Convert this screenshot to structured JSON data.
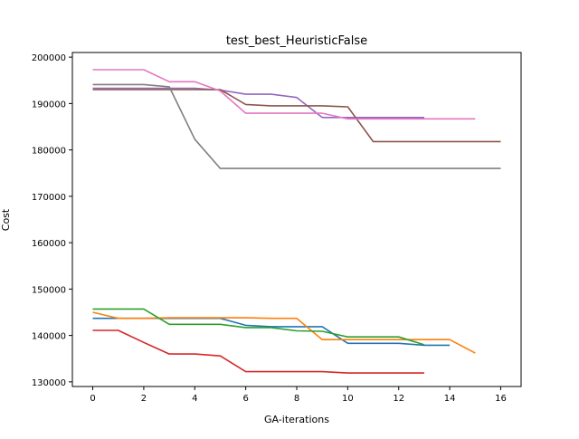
{
  "chart_data": {
    "type": "line",
    "title": "test_best_HeuristicFalse",
    "xlabel": "GA-iterations",
    "ylabel": "Cost",
    "xlim": [
      -0.8,
      16.8
    ],
    "ylim": [
      129000,
      201000
    ],
    "xticks": [
      0,
      2,
      4,
      6,
      8,
      10,
      12,
      14,
      16
    ],
    "yticks": [
      130000,
      140000,
      150000,
      160000,
      170000,
      180000,
      190000,
      200000
    ],
    "grid": false,
    "series": [
      {
        "color": "#1f77b4",
        "x": [
          0,
          1,
          2,
          3,
          4,
          5,
          6,
          7,
          8,
          9,
          10,
          11,
          12,
          13,
          14
        ],
        "y": [
          143700,
          143700,
          143700,
          143700,
          143700,
          143700,
          142200,
          141900,
          141900,
          141900,
          138300,
          138300,
          138300,
          137900,
          137900
        ]
      },
      {
        "color": "#ff7f0e",
        "x": [
          0,
          1,
          2,
          3,
          4,
          5,
          6,
          7,
          8,
          9,
          10,
          11,
          12,
          13,
          14,
          15
        ],
        "y": [
          145000,
          143700,
          143700,
          143800,
          143800,
          143800,
          143800,
          143700,
          143700,
          139100,
          139100,
          139100,
          139100,
          139100,
          139100,
          136200
        ]
      },
      {
        "color": "#2ca02c",
        "x": [
          0,
          1,
          2,
          3,
          4,
          5,
          6,
          7,
          8,
          9,
          10,
          11,
          12,
          13
        ],
        "y": [
          145700,
          145700,
          145700,
          142400,
          142400,
          142400,
          141700,
          141700,
          141000,
          140900,
          139700,
          139700,
          139700,
          138000
        ]
      },
      {
        "color": "#d62728",
        "x": [
          0,
          1,
          2,
          3,
          4,
          5,
          6,
          7,
          8,
          9,
          10,
          11,
          12,
          13
        ],
        "y": [
          141100,
          141100,
          138500,
          136000,
          136000,
          135600,
          132200,
          132200,
          132200,
          132200,
          131900,
          131900,
          131900,
          131900
        ]
      },
      {
        "color": "#9467bd",
        "x": [
          0,
          1,
          2,
          3,
          4,
          5,
          6,
          7,
          8,
          9,
          10,
          11,
          12,
          13
        ],
        "y": [
          193300,
          193300,
          193300,
          193300,
          193300,
          192900,
          192000,
          192000,
          191300,
          187000,
          187000,
          187000,
          187000,
          187000
        ]
      },
      {
        "color": "#8c564b",
        "x": [
          0,
          1,
          2,
          3,
          4,
          5,
          6,
          7,
          8,
          9,
          10,
          11,
          12,
          13,
          14,
          15,
          16
        ],
        "y": [
          193000,
          193000,
          193000,
          193000,
          193000,
          193000,
          189800,
          189500,
          189500,
          189500,
          189300,
          181800,
          181800,
          181800,
          181800,
          181800,
          181800
        ]
      },
      {
        "color": "#e377c2",
        "x": [
          0,
          1,
          2,
          3,
          4,
          5,
          6,
          7,
          8,
          9,
          10,
          11,
          12,
          13,
          14,
          15
        ],
        "y": [
          197300,
          197300,
          197300,
          194700,
          194700,
          192700,
          187900,
          187900,
          187900,
          187900,
          186700,
          186700,
          186700,
          186700,
          186700,
          186700
        ]
      },
      {
        "color": "#7f7f7f",
        "x": [
          0,
          1,
          2,
          3,
          4,
          5,
          6,
          7,
          8,
          9,
          10,
          11,
          12,
          13,
          14,
          15,
          16
        ],
        "y": [
          194100,
          194100,
          194100,
          193600,
          182300,
          176000,
          176000,
          176000,
          176000,
          176000,
          176000,
          176000,
          176000,
          176000,
          176000,
          176000,
          176000
        ]
      }
    ]
  }
}
